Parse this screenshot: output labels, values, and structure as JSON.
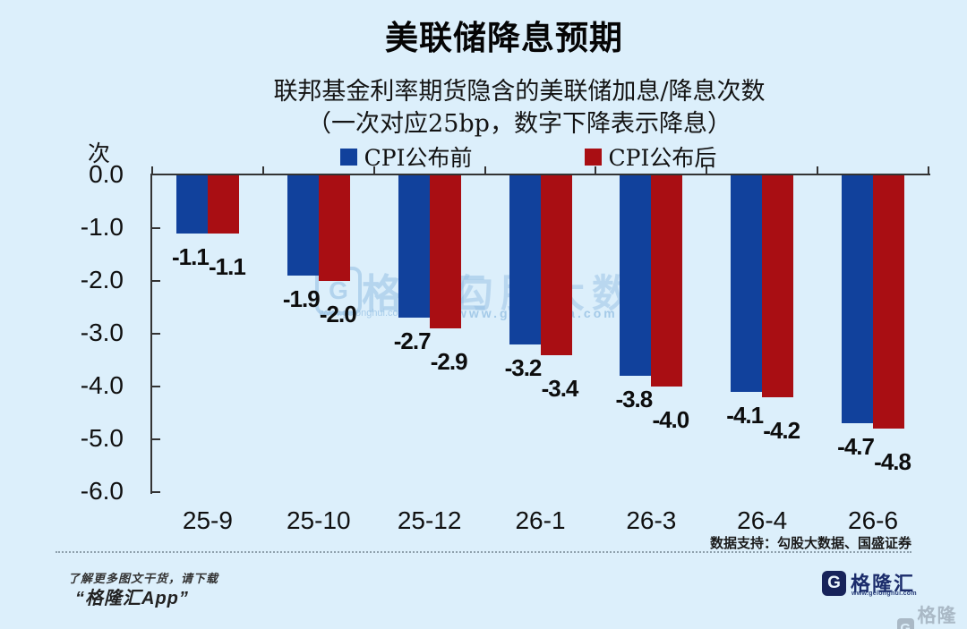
{
  "page": {
    "background": "#dceffb"
  },
  "title": "美联储降息预期",
  "chart": {
    "subtitle_line1": "联邦基金利率期货隐含的美联储加息/降息次数",
    "subtitle_line2": "（一次对应25bp，数字下降表示降息）",
    "unit_label": "次"
  },
  "chart_data": {
    "type": "bar",
    "title": "联邦基金利率期货隐含的美联储加息/降息次数",
    "subtitle": "（一次对应25bp，数字下降表示降息）",
    "ylabel": "次",
    "categories": [
      "25-9",
      "25-10",
      "25-12",
      "26-1",
      "26-3",
      "26-4",
      "26-6"
    ],
    "series": [
      {
        "name": "CPI公布前",
        "color": "#11419c",
        "values": [
          -1.1,
          -1.9,
          -2.7,
          -3.2,
          -3.8,
          -4.1,
          -4.7
        ]
      },
      {
        "name": "CPI公布后",
        "color": "#a90e13",
        "values": [
          -1.1,
          -2.0,
          -2.9,
          -3.4,
          -4.0,
          -4.2,
          -4.8
        ]
      }
    ],
    "ylim": [
      -6.0,
      0.0
    ],
    "yticks": [
      0.0,
      -1.0,
      -2.0,
      -3.0,
      -4.0,
      -5.0,
      -6.0
    ],
    "grid": false,
    "legend_position": "top",
    "data_labels": true
  },
  "source_note": "数据支持：勾股大数据、国盛证券",
  "footer": {
    "promo_line1": "了解更多图文干货，请下载",
    "promo_line2": "“格隆汇App”",
    "brand_logo_letter": "G",
    "brand_name": "格隆汇",
    "brand_url": "www.gelonghui.com"
  },
  "watermark": {
    "logo_letter": "G",
    "brand_name": "格隆汇",
    "brand_url": "www.gelonghui.com",
    "partner_name": "勾股大数据",
    "partner_url": "www.gogudata.com",
    "corner_logo_letter": "G",
    "corner_brand": "格隆汇"
  },
  "colors": {
    "background": "#dceffb",
    "bar_before_cpi": "#11419c",
    "bar_after_cpi": "#a90e13",
    "axis": "#333333",
    "brand_navy": "#1b2c6b"
  }
}
